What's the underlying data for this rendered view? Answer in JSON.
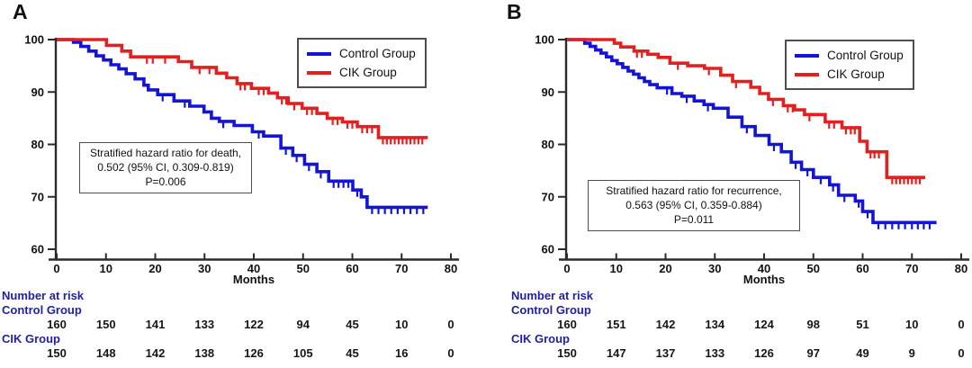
{
  "style_colors": {
    "control": "#1414d6",
    "cik": "#e32020",
    "risk_label": "#22229e",
    "axis": "#2b2b2b"
  },
  "chart_data": [
    {
      "type": "line",
      "subtype": "kaplan-meier-step",
      "title": "A",
      "xlabel": "Months",
      "xlim": [
        0,
        80
      ],
      "ylim": [
        60,
        100
      ],
      "xticks": [
        "0",
        "10",
        "20",
        "30",
        "40",
        "50",
        "60",
        "70",
        "80"
      ],
      "yticks": [
        "60",
        "70",
        "80",
        "90",
        "100"
      ],
      "grid": false,
      "legend_position": "upper right",
      "series": [
        {
          "name": "Control Group",
          "color": "#1414d6",
          "start": [
            0,
            100
          ],
          "steps": [
            [
              3.4,
              99.5
            ],
            [
              4.9,
              98.7
            ],
            [
              6.5,
              97.8
            ],
            [
              8,
              96.9
            ],
            [
              9.5,
              96.1
            ],
            [
              11,
              95.2
            ],
            [
              12.6,
              94.4
            ],
            [
              14.1,
              93.5
            ],
            [
              15.9,
              92.5
            ],
            [
              17.7,
              91.3
            ],
            [
              18.6,
              90.4
            ],
            [
              20.5,
              89.5
            ],
            [
              23.8,
              88.3
            ],
            [
              27,
              87.3
            ],
            [
              29.9,
              86.2
            ],
            [
              31.4,
              85.0
            ],
            [
              33,
              84.4
            ],
            [
              36,
              83.6
            ],
            [
              39.7,
              82.4
            ],
            [
              42,
              81.6
            ],
            [
              45.5,
              79.3
            ],
            [
              47.9,
              77.9
            ],
            [
              50.3,
              76.2
            ],
            [
              52.8,
              74.8
            ],
            [
              55.2,
              73.0
            ],
            [
              60.1,
              71.3
            ],
            [
              61.8,
              70.0
            ],
            [
              63,
              68.0
            ]
          ],
          "end_time": 75.3,
          "censor_times": [
            21.5,
            26,
            33.8,
            41,
            46.5,
            48.7,
            51.2,
            53.6,
            56.2,
            57.2,
            58.2,
            59.2,
            61,
            64,
            65.3,
            66.6,
            67.9,
            69.2,
            70.5,
            71.8,
            73.1,
            74.4
          ]
        },
        {
          "name": "CIK Group",
          "color": "#e32020",
          "start": [
            0,
            100
          ],
          "steps": [
            [
              10.1,
              98.9
            ],
            [
              13.2,
              97.8
            ],
            [
              15,
              96.7
            ],
            [
              24.7,
              95.8
            ],
            [
              27.4,
              94.7
            ],
            [
              32.4,
              93.6
            ],
            [
              34.5,
              92.7
            ],
            [
              36.6,
              91.6
            ],
            [
              39.5,
              90.7
            ],
            [
              43,
              89.8
            ],
            [
              44.8,
              88.9
            ],
            [
              47,
              87.8
            ],
            [
              49.8,
              86.9
            ],
            [
              52.8,
              85.9
            ],
            [
              54.9,
              85.0
            ],
            [
              58,
              84.3
            ],
            [
              61,
              83.4
            ],
            [
              65.3,
              81.3
            ]
          ],
          "end_time": 75.3,
          "censor_times": [
            18.3,
            19.5,
            22,
            29,
            31,
            37.3,
            38.2,
            41,
            42,
            45.7,
            46.6,
            48.2,
            50.8,
            51.8,
            56,
            57,
            59,
            60,
            62,
            63,
            64,
            66.2,
            67,
            67.8,
            68.6,
            69.4,
            70.2,
            71,
            71.8,
            72.6,
            73.4,
            74.2
          ]
        }
      ],
      "annotation": {
        "lines": [
          "Stratified hazard ratio for death,",
          "0.502 (95% CI, 0.309-0.819)",
          "P=0.006"
        ]
      },
      "risk_table": {
        "title": "Number at risk",
        "months": [
          0,
          10,
          20,
          30,
          40,
          50,
          60,
          70,
          80
        ],
        "groups": [
          {
            "name": "Control Group",
            "counts": [
              "160",
              "150",
              "141",
              "133",
              "122",
              "94",
              "45",
              "10",
              "0"
            ]
          },
          {
            "name": "CIK Group",
            "counts": [
              "150",
              "148",
              "142",
              "138",
              "126",
              "105",
              "45",
              "16",
              "0"
            ]
          }
        ]
      }
    },
    {
      "type": "line",
      "subtype": "kaplan-meier-step",
      "title": "B",
      "xlabel": "Months",
      "xlim": [
        0,
        80
      ],
      "ylim": [
        60,
        100
      ],
      "xticks": [
        "0",
        "10",
        "20",
        "30",
        "40",
        "50",
        "60",
        "70",
        "80"
      ],
      "yticks": [
        "60",
        "70",
        "80",
        "90",
        "100"
      ],
      "grid": false,
      "legend_position": "upper right",
      "series": [
        {
          "name": "Control Group",
          "color": "#1414d6",
          "start": [
            0,
            100
          ],
          "steps": [
            [
              3.6,
              99.3
            ],
            [
              4.7,
              98.7
            ],
            [
              5.8,
              98.0
            ],
            [
              6.9,
              97.4
            ],
            [
              8,
              96.7
            ],
            [
              9.1,
              96.0
            ],
            [
              10.2,
              95.4
            ],
            [
              11.3,
              94.7
            ],
            [
              12.4,
              94.0
            ],
            [
              13.5,
              93.4
            ],
            [
              14.6,
              92.7
            ],
            [
              15.7,
              92.0
            ],
            [
              16.8,
              91.4
            ],
            [
              18.3,
              90.8
            ],
            [
              21.3,
              89.7
            ],
            [
              23.3,
              89.2
            ],
            [
              25.8,
              88.3
            ],
            [
              27.8,
              87.6
            ],
            [
              29.7,
              86.9
            ],
            [
              32.7,
              85.2
            ],
            [
              35.5,
              83.4
            ],
            [
              38.2,
              81.7
            ],
            [
              41,
              80.0
            ],
            [
              43.5,
              78.6
            ],
            [
              45.5,
              76.6
            ],
            [
              47.6,
              75.2
            ],
            [
              50,
              73.7
            ],
            [
              53.3,
              72.3
            ],
            [
              55.1,
              70.3
            ],
            [
              58.5,
              69.2
            ],
            [
              60,
              67.2
            ],
            [
              62.1,
              65.1
            ]
          ],
          "end_time": 75,
          "censor_times": [
            20.3,
            24.3,
            28.6,
            36.5,
            42,
            46.4,
            48.8,
            51.5,
            54,
            56.3,
            59.2,
            61,
            63.2,
            64.6,
            66,
            67.3,
            68.6,
            70,
            71.2,
            72.4,
            73.6
          ]
        },
        {
          "name": "CIK Group",
          "color": "#e32020",
          "start": [
            0,
            100
          ],
          "steps": [
            [
              9.6,
              99.3
            ],
            [
              10.9,
              98.6
            ],
            [
              13.6,
              97.8
            ],
            [
              16.4,
              97.2
            ],
            [
              18.5,
              96.6
            ],
            [
              20.9,
              95.5
            ],
            [
              24.5,
              95.0
            ],
            [
              27.9,
              94.5
            ],
            [
              31.2,
              93.2
            ],
            [
              33.6,
              92.0
            ],
            [
              37.3,
              90.9
            ],
            [
              39.1,
              89.7
            ],
            [
              40.9,
              88.6
            ],
            [
              43.9,
              87.4
            ],
            [
              46.2,
              86.6
            ],
            [
              48.2,
              85.7
            ],
            [
              52.4,
              84.3
            ],
            [
              55.8,
              83.2
            ],
            [
              59.4,
              80.6
            ],
            [
              60.9,
              78.6
            ],
            [
              64.9,
              73.7
            ]
          ],
          "end_time": 72.7,
          "censor_times": [
            14.2,
            15.2,
            22.5,
            28.8,
            34.3,
            41.8,
            44.8,
            45.8,
            49.2,
            53.2,
            54.2,
            56.6,
            57.6,
            58.4,
            61.6,
            62.4,
            63.3,
            66,
            66.8,
            67.6,
            68.4,
            69.2,
            70,
            70.8,
            71.6
          ]
        }
      ],
      "annotation": {
        "lines": [
          "Stratified hazard ratio for recurrence,",
          "0.563 (95% CI, 0.359-0.884)",
          "P=0.011"
        ]
      },
      "risk_table": {
        "title": "Number at risk",
        "months": [
          0,
          10,
          20,
          30,
          40,
          50,
          60,
          70,
          80
        ],
        "groups": [
          {
            "name": "Control Group",
            "counts": [
              "160",
              "151",
              "142",
              "134",
              "124",
              "98",
              "51",
              "10",
              "0"
            ]
          },
          {
            "name": "CIK Group",
            "counts": [
              "150",
              "147",
              "137",
              "133",
              "126",
              "97",
              "49",
              "9",
              "0"
            ]
          }
        ]
      }
    }
  ]
}
